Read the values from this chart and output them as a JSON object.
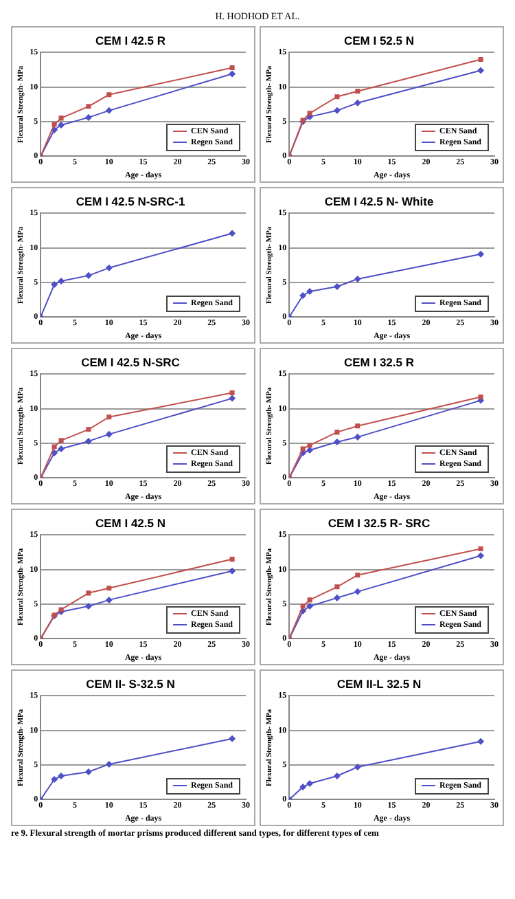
{
  "chart_data": [
    {
      "type": "line",
      "title": "CEM I 42.5 R",
      "xlabel": "Age - days",
      "ylabel": "Flexural Strength- MPa",
      "x": [
        0,
        2,
        3,
        7,
        10,
        28
      ],
      "xlim": [
        0,
        30
      ],
      "xticks": [
        0,
        5,
        10,
        15,
        20,
        25,
        30
      ],
      "ylim": [
        0,
        15
      ],
      "yticks": [
        0,
        5,
        10,
        15
      ],
      "grid": "y",
      "legend": "bottom right",
      "annotations": [
        "H. HODHOD ET AL."
      ],
      "series": [
        {
          "name": "CEN Sand",
          "color": "#c0504d",
          "marker": "square",
          "values": [
            0,
            4.6,
            5.5,
            7.2,
            8.9,
            12.8
          ]
        },
        {
          "name": "Regen Sand",
          "color": "#4f4fc8",
          "marker": "diamond",
          "values": [
            0,
            3.8,
            4.5,
            5.6,
            6.6,
            11.9
          ]
        }
      ]
    },
    {
      "type": "line",
      "title": "CEM I 52.5 N",
      "xlabel": "Age - days",
      "ylabel": "Flexural Strength- MPa",
      "x": [
        0,
        2,
        3,
        7,
        10,
        28
      ],
      "xlim": [
        0,
        30
      ],
      "xticks": [
        0,
        5,
        10,
        15,
        20,
        25,
        30
      ],
      "ylim": [
        0,
        15
      ],
      "yticks": [
        0,
        5,
        10,
        15
      ],
      "grid": "y",
      "legend": "bottom right",
      "series": [
        {
          "name": "CEN Sand",
          "color": "#c0504d",
          "marker": "square",
          "values": [
            0,
            5.2,
            6.2,
            8.6,
            9.4,
            14
          ]
        },
        {
          "name": "Regen Sand",
          "color": "#4f4fc8",
          "marker": "diamond",
          "values": [
            0,
            5,
            5.7,
            6.6,
            7.7,
            12.4
          ]
        }
      ]
    },
    {
      "type": "line",
      "title": "CEM I 42.5 N-SRC-1",
      "xlabel": "Age - days",
      "ylabel": "Flexural Strength- MPa",
      "x": [
        0,
        2,
        3,
        7,
        10,
        28
      ],
      "xlim": [
        0,
        30
      ],
      "xticks": [
        0,
        5,
        10,
        15,
        20,
        25,
        30
      ],
      "ylim": [
        0,
        15
      ],
      "yticks": [
        0,
        5,
        10,
        15
      ],
      "grid": "y",
      "legend": "bottom right",
      "series": [
        {
          "name": "Regen Sand",
          "color": "#4f4fc8",
          "marker": "diamond",
          "values": [
            0,
            4.7,
            5.2,
            6,
            7.1,
            12.1
          ]
        }
      ]
    },
    {
      "type": "line",
      "title": "CEM I 42.5 N- White",
      "xlabel": "Age - days",
      "ylabel": "Flexural Strength- MPa",
      "x": [
        0,
        2,
        3,
        7,
        10,
        28
      ],
      "xlim": [
        0,
        30
      ],
      "xticks": [
        0,
        5,
        10,
        15,
        20,
        25,
        30
      ],
      "ylim": [
        0,
        15
      ],
      "yticks": [
        0,
        5,
        10,
        15
      ],
      "grid": "y",
      "legend": "bottom right",
      "series": [
        {
          "name": "Regen Sand",
          "color": "#4f4fc8",
          "marker": "diamond",
          "values": [
            0,
            3.1,
            3.7,
            4.4,
            5.5,
            9.1
          ]
        }
      ]
    },
    {
      "type": "line",
      "title": "CEM I 42.5 N-SRC",
      "xlabel": "Age - days",
      "ylabel": "Flexural Strength- MPa",
      "x": [
        0,
        2,
        3,
        7,
        10,
        28
      ],
      "xlim": [
        0,
        30
      ],
      "xticks": [
        0,
        5,
        10,
        15,
        20,
        25,
        30
      ],
      "ylim": [
        0,
        15
      ],
      "yticks": [
        0,
        5,
        10,
        15
      ],
      "grid": "y",
      "legend": "bottom right",
      "series": [
        {
          "name": "CEN Sand",
          "color": "#c0504d",
          "marker": "square",
          "values": [
            0,
            4.5,
            5.4,
            7,
            8.8,
            12.3
          ]
        },
        {
          "name": "Regen Sand",
          "color": "#4f4fc8",
          "marker": "diamond",
          "values": [
            0,
            3.6,
            4.2,
            5.3,
            6.3,
            11.5
          ]
        }
      ]
    },
    {
      "type": "line",
      "title": "CEM I 32.5 R",
      "xlabel": "Age - days",
      "ylabel": "Flexural Strength- MPa",
      "x": [
        0,
        2,
        3,
        7,
        10,
        28
      ],
      "xlim": [
        0,
        30
      ],
      "xticks": [
        0,
        5,
        10,
        15,
        20,
        25,
        30
      ],
      "ylim": [
        0,
        15
      ],
      "yticks": [
        0,
        5,
        10,
        15
      ],
      "grid": "y",
      "legend": "bottom right",
      "series": [
        {
          "name": "CEN Sand",
          "color": "#c0504d",
          "marker": "square",
          "values": [
            0,
            4.2,
            4.7,
            6.6,
            7.5,
            11.7
          ]
        },
        {
          "name": "Regen Sand",
          "color": "#4f4fc8",
          "marker": "diamond",
          "values": [
            0,
            3.6,
            4,
            5.2,
            5.9,
            11.2
          ]
        }
      ]
    },
    {
      "type": "line",
      "title": "CEM I 42.5 N",
      "xlabel": "Age - days",
      "ylabel": "Flexural Strength- MPa",
      "x": [
        0,
        2,
        3,
        7,
        10,
        28
      ],
      "xlim": [
        0,
        30
      ],
      "xticks": [
        0,
        5,
        10,
        15,
        20,
        25,
        30
      ],
      "ylim": [
        0,
        15
      ],
      "yticks": [
        0,
        5,
        10,
        15
      ],
      "grid": "y",
      "legend": "bottom right",
      "series": [
        {
          "name": "CEN Sand",
          "color": "#c0504d",
          "marker": "square",
          "values": [
            0,
            3.4,
            4.2,
            6.6,
            7.3,
            11.5
          ]
        },
        {
          "name": "Regen Sand",
          "color": "#4f4fc8",
          "marker": "diamond",
          "values": [
            0,
            3.3,
            3.9,
            4.7,
            5.6,
            9.8
          ]
        }
      ]
    },
    {
      "type": "line",
      "title": "CEM I 32.5 R- SRC",
      "xlabel": "Age - days",
      "ylabel": "Flexural Strength- MPa",
      "x": [
        0,
        2,
        3,
        7,
        10,
        28
      ],
      "xlim": [
        0,
        30
      ],
      "xticks": [
        0,
        5,
        10,
        15,
        20,
        25,
        30
      ],
      "ylim": [
        0,
        15
      ],
      "yticks": [
        0,
        5,
        10,
        15
      ],
      "grid": "y",
      "legend": "bottom right",
      "series": [
        {
          "name": "CEN Sand",
          "color": "#c0504d",
          "marker": "square",
          "values": [
            0,
            4.7,
            5.6,
            7.5,
            9.2,
            13
          ]
        },
        {
          "name": "Regen Sand",
          "color": "#4f4fc8",
          "marker": "diamond",
          "values": [
            0,
            4,
            4.7,
            5.9,
            6.8,
            12
          ]
        }
      ]
    },
    {
      "type": "line",
      "title": "CEM II- S-32.5 N",
      "xlabel": "Age - days",
      "ylabel": "Flexural Strength- MPa",
      "x": [
        0,
        2,
        3,
        7,
        10,
        28
      ],
      "xlim": [
        0,
        30
      ],
      "xticks": [
        0,
        5,
        10,
        15,
        20,
        25,
        30
      ],
      "ylim": [
        0,
        15
      ],
      "yticks": [
        0,
        5,
        10,
        15
      ],
      "grid": "y",
      "legend": "bottom right",
      "series": [
        {
          "name": "Regen Sand",
          "color": "#4f4fc8",
          "marker": "diamond",
          "values": [
            0,
            2.9,
            3.4,
            4,
            5.1,
            8.8
          ]
        }
      ]
    },
    {
      "type": "line",
      "title": "CEM II-L 32.5 N",
      "xlabel": "Age - days",
      "ylabel": "Flexural Strength- MPa",
      "x": [
        0,
        2,
        3,
        7,
        10,
        28
      ],
      "xlim": [
        0,
        30
      ],
      "xticks": [
        0,
        5,
        10,
        15,
        20,
        25,
        30
      ],
      "ylim": [
        0,
        15
      ],
      "yticks": [
        0,
        5,
        10,
        15
      ],
      "grid": "y",
      "legend": "bottom right",
      "annotations": [
        "re 9. Flexural strength of mortar prisms produced different sand types, for different types of cem"
      ],
      "series": [
        {
          "name": "Regen Sand",
          "color": "#4f4fc8",
          "marker": "diamond",
          "values": [
            0,
            1.8,
            2.3,
            3.4,
            4.7,
            8.4
          ]
        }
      ]
    }
  ]
}
